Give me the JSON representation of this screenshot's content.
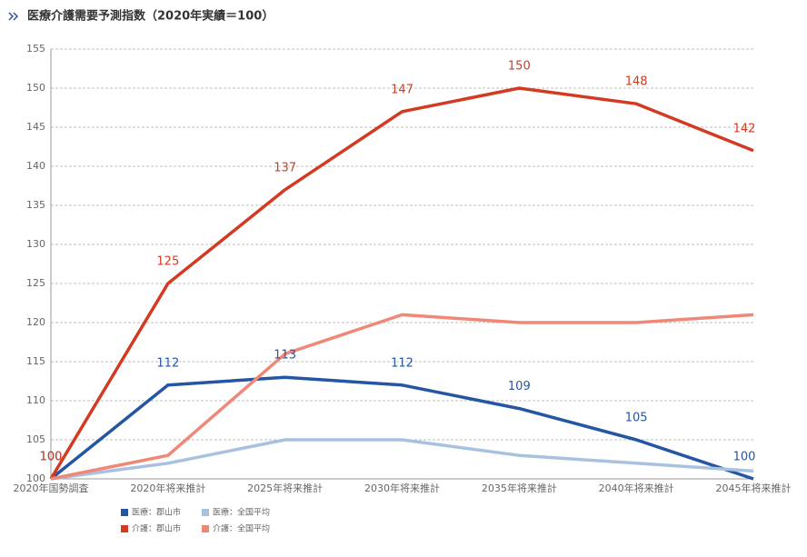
{
  "chart_data": {
    "type": "line",
    "title": "医療介護需要予測指数（2020年実績＝100）",
    "categories": [
      "2020年国勢調査",
      "2020年将来推計",
      "2025年将来推計",
      "2030年将来推計",
      "2035年将来推計",
      "2040年将来推計",
      "2045年将来推計"
    ],
    "series": [
      {
        "name": "医療：郡山市",
        "color": "#2456a4",
        "values": [
          100,
          112,
          113,
          112,
          109,
          105,
          100
        ],
        "data_labels": true
      },
      {
        "name": "医療：全国平均",
        "color": "#a9c1e0",
        "values": [
          100,
          102,
          105,
          105,
          103,
          102,
          101
        ],
        "data_labels": false
      },
      {
        "name": "介護：郡山市",
        "color": "#d23a22",
        "values": [
          100,
          125,
          137,
          147,
          150,
          148,
          142
        ],
        "data_labels": true
      },
      {
        "name": "介護：全国平均",
        "color": "#f08878",
        "values": [
          100,
          103,
          116,
          121,
          120,
          120,
          121
        ],
        "data_labels": false
      }
    ],
    "ylim": [
      100,
      155
    ],
    "yticks": [
      100,
      105,
      110,
      115,
      120,
      125,
      130,
      135,
      140,
      145,
      150,
      155
    ],
    "grid": true
  }
}
